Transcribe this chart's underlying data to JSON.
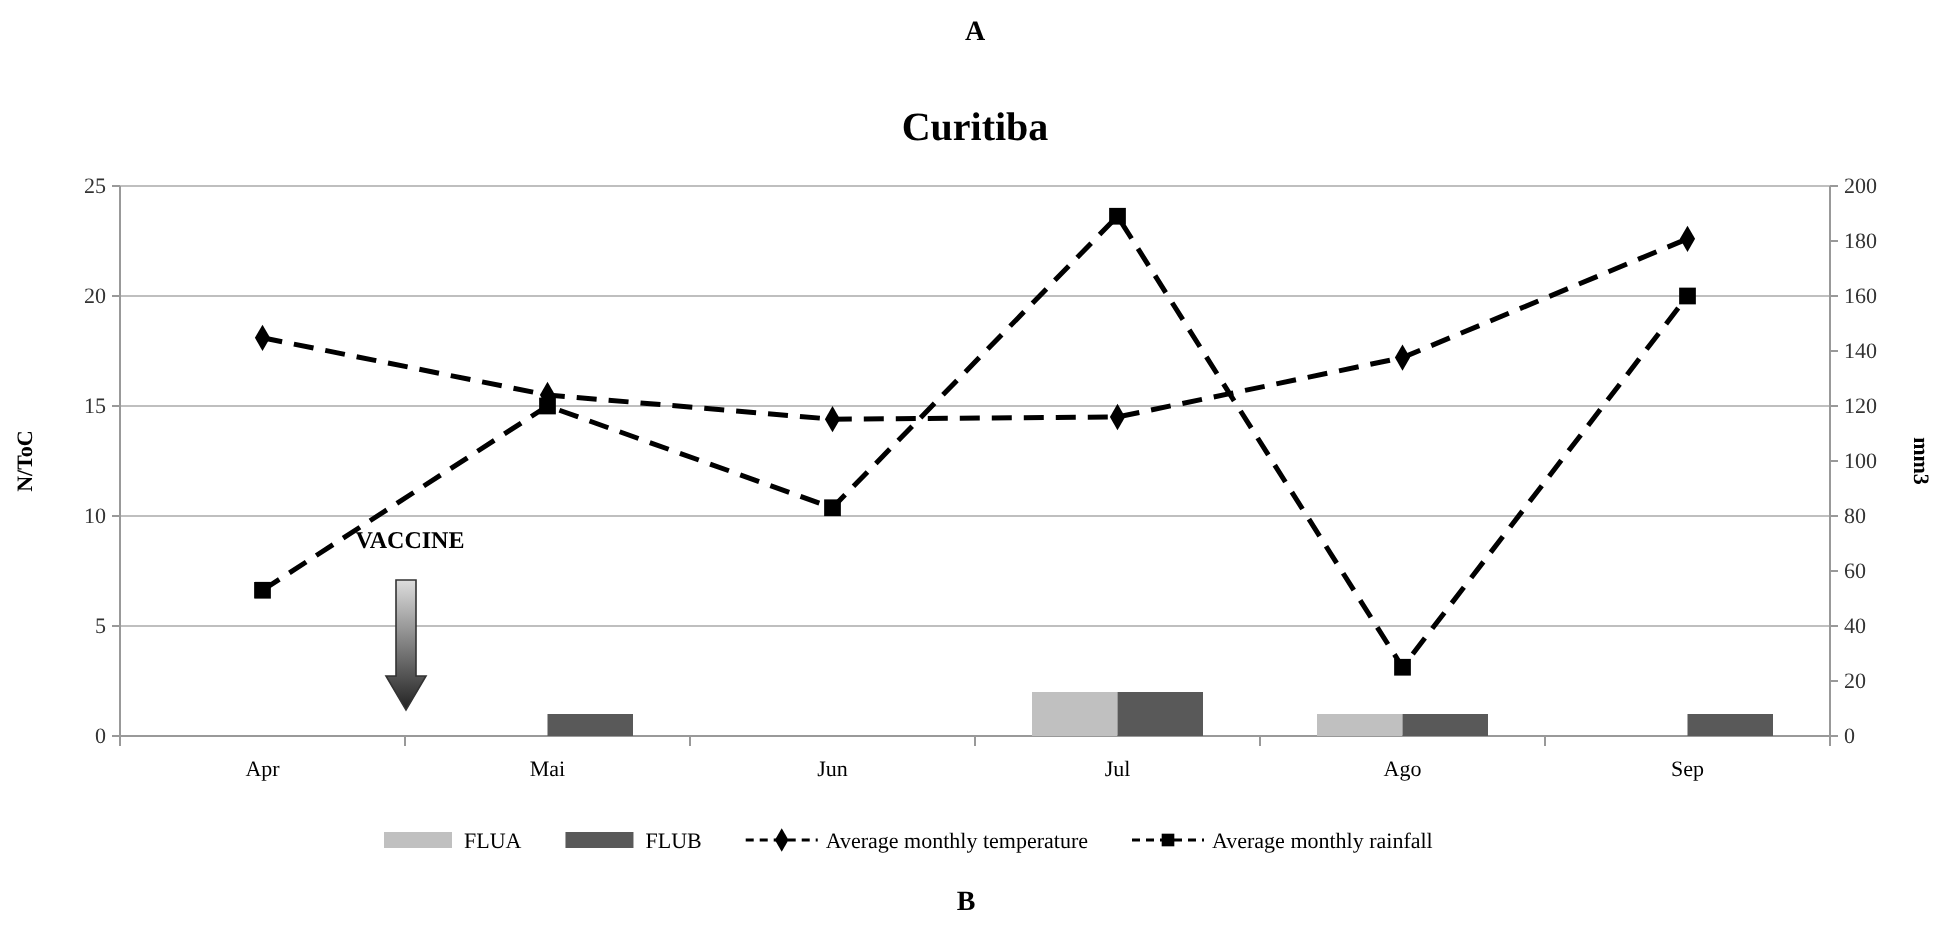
{
  "chart_data": {
    "type": "bar",
    "title": "Curitiba",
    "ylabel": "N/ToC",
    "y2label": "mm3",
    "categories": [
      "Apr",
      "Mai",
      "Jun",
      "Jul",
      "Ago",
      "Sep"
    ],
    "series": [
      {
        "name": "FLUA",
        "color": "#c0c0c0",
        "values": [
          0,
          0,
          0,
          2,
          1,
          0
        ]
      },
      {
        "name": "FLUB",
        "color": "#595959",
        "values": [
          0,
          1,
          0,
          2,
          1,
          1
        ]
      },
      {
        "name": "Average monthly temperature",
        "type": "line",
        "color": "#000000",
        "marker": "diamond",
        "line_style": "dashed",
        "values": [
          18.1,
          15.5,
          14.4,
          14.5,
          17.2,
          22.6
        ]
      },
      {
        "name": "Average monthly rainfall",
        "type": "line",
        "axis": "y2",
        "color": "#000000",
        "marker": "square",
        "line_style": "dashed",
        "values": [
          53,
          120,
          83,
          189,
          25,
          160
        ]
      }
    ],
    "ylim": [
      0,
      25
    ],
    "yticks": [
      0,
      5,
      10,
      15,
      20,
      25
    ],
    "y2lim": [
      0,
      200
    ],
    "y2ticks": [
      0,
      20,
      40,
      60,
      80,
      100,
      120,
      140,
      160,
      180,
      200
    ],
    "grid": "y",
    "legend": "bottom",
    "annotations": [
      "A",
      "VACCINE",
      "B"
    ]
  }
}
